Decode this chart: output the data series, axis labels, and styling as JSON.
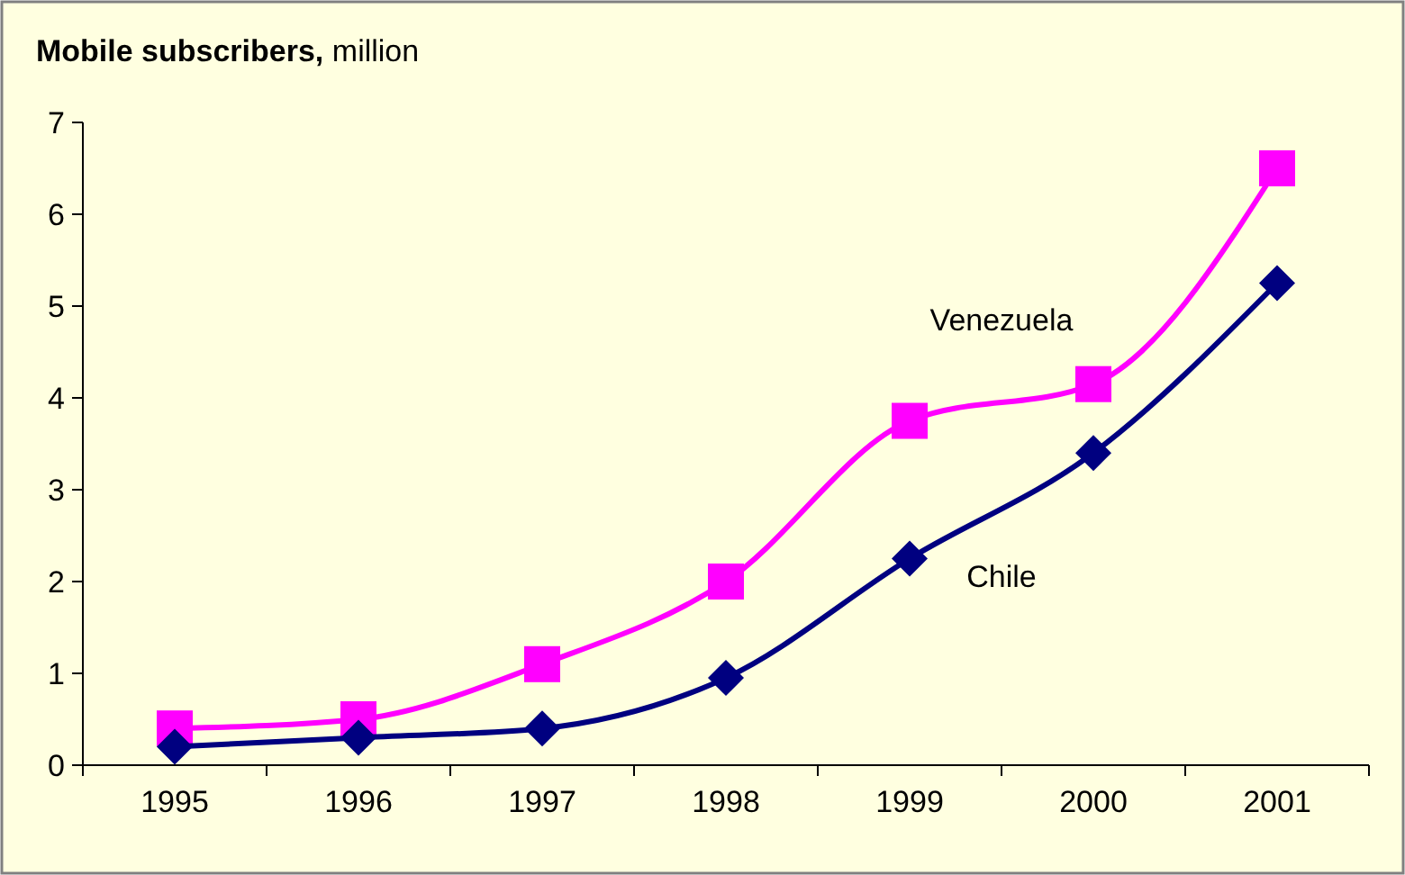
{
  "chart_data": {
    "type": "line",
    "title": "Mobile subscribers,",
    "subtitle": "million",
    "categories": [
      "1995",
      "1996",
      "1997",
      "1998",
      "1999",
      "2000",
      "2001"
    ],
    "series": [
      {
        "name": "Venezuela",
        "color": "#ff00ff",
        "marker": "square",
        "values": [
          0.4,
          0.5,
          1.1,
          2.0,
          3.75,
          4.15,
          6.5
        ]
      },
      {
        "name": "Chile",
        "color": "#000080",
        "marker": "diamond",
        "values": [
          0.2,
          0.3,
          0.4,
          0.95,
          2.25,
          3.4,
          5.25
        ]
      }
    ],
    "ylim": [
      0,
      7
    ],
    "yticks": [
      0,
      1,
      2,
      3,
      4,
      5,
      6,
      7
    ],
    "grid": false,
    "legend": false
  }
}
